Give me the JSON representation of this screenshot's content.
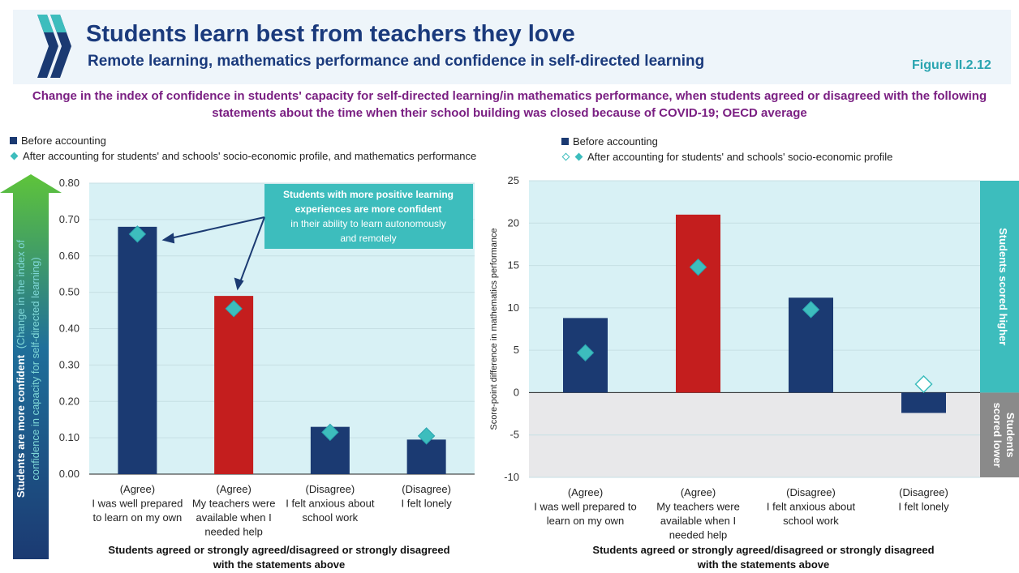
{
  "header": {
    "title": "Students learn best from teachers they love",
    "subtitle": "Remote learning, mathematics performance and confidence in self-directed learning",
    "figure_label": "Figure II.2.12"
  },
  "description": "Change in the index of confidence in students' capacity for self-directed learning/in mathematics performance, when students agreed or disagreed with the following statements about the time when their school building was closed because of COVID-19; OECD average",
  "colors": {
    "bar_navy": "#1b3a72",
    "bar_red": "#c41e1e",
    "diamond": "#3dbdbd",
    "plot_bg": "#d8f1f5",
    "lower_bg": "#e8e8ea",
    "arrow_band": "#3dbdbd",
    "title_blue": "#1a3a7c",
    "purple": "#7a1f82"
  },
  "left_legend": {
    "before": "Before accounting",
    "after": "After accounting for students' and schools' socio-economic profile, and mathematics performance"
  },
  "right_legend": {
    "before": "Before accounting",
    "after": "After accounting for students' and schools' socio-economic profile"
  },
  "left_yaxis_arrow": {
    "text_bold": "Students are more confident",
    "text_rest": "(Change in the index of",
    "text_line2": "confidence in capacity for self-directed learning)"
  },
  "callout": {
    "line1": "Students with more positive learning",
    "line2": "experiences are more confident",
    "line3": "in their ability to learn autonomously",
    "line4": "and remotely"
  },
  "right_side_labels": {
    "higher": "Students scored higher",
    "lower_line1": "Students",
    "lower_line2": "scored lower"
  },
  "chart_data": [
    {
      "type": "bar",
      "categories": [
        [
          "(Agree)",
          "I was well prepared",
          "to learn on my own"
        ],
        [
          "(Agree)",
          "My teachers were",
          "available when I",
          "needed help"
        ],
        [
          "(Disagree)",
          "I felt anxious about",
          "school work"
        ],
        [
          "(Disagree)",
          "I felt lonely"
        ]
      ],
      "series": [
        {
          "name": "Before accounting",
          "values": [
            0.68,
            0.49,
            0.13,
            0.095
          ]
        },
        {
          "name": "After accounting for students' and schools' socio-economic profile, and mathematics performance",
          "values": [
            0.66,
            0.455,
            0.115,
            0.105
          ]
        }
      ],
      "highlight_index": 1,
      "ylim": [
        0,
        0.8
      ],
      "yticks": [
        "0.00",
        "0.10",
        "0.20",
        "0.30",
        "0.40",
        "0.50",
        "0.60",
        "0.70",
        "0.80"
      ],
      "xlabel_line1": "Students agreed or strongly agreed/disagreed or strongly disagreed",
      "xlabel_line2": "with the statements above",
      "ylabel": ""
    },
    {
      "type": "bar",
      "categories": [
        [
          "(Agree)",
          "I was well prepared to",
          "learn on my own"
        ],
        [
          "(Agree)",
          "My teachers were",
          "available when I",
          "needed help"
        ],
        [
          "(Disagree)",
          "I felt anxious about",
          "school work"
        ],
        [
          "(Disagree)",
          "I felt lonely"
        ]
      ],
      "series": [
        {
          "name": "Before accounting",
          "values": [
            8.8,
            21.0,
            11.2,
            -2.4
          ]
        },
        {
          "name": "After accounting for students' and schools' socio-economic profile",
          "values": [
            4.7,
            14.8,
            9.8,
            1.0
          ],
          "significant": [
            true,
            true,
            true,
            false
          ]
        }
      ],
      "highlight_index": 1,
      "ylim": [
        -10,
        25
      ],
      "yticks": [
        "-10",
        "-5",
        "0",
        "5",
        "10",
        "15",
        "20",
        "25"
      ],
      "xlabel_line1": "Students agreed or strongly agreed/disagreed or strongly disagreed",
      "xlabel_line2": "with the statements above",
      "ylabel": "Score-point difference in mathematics performance"
    }
  ]
}
